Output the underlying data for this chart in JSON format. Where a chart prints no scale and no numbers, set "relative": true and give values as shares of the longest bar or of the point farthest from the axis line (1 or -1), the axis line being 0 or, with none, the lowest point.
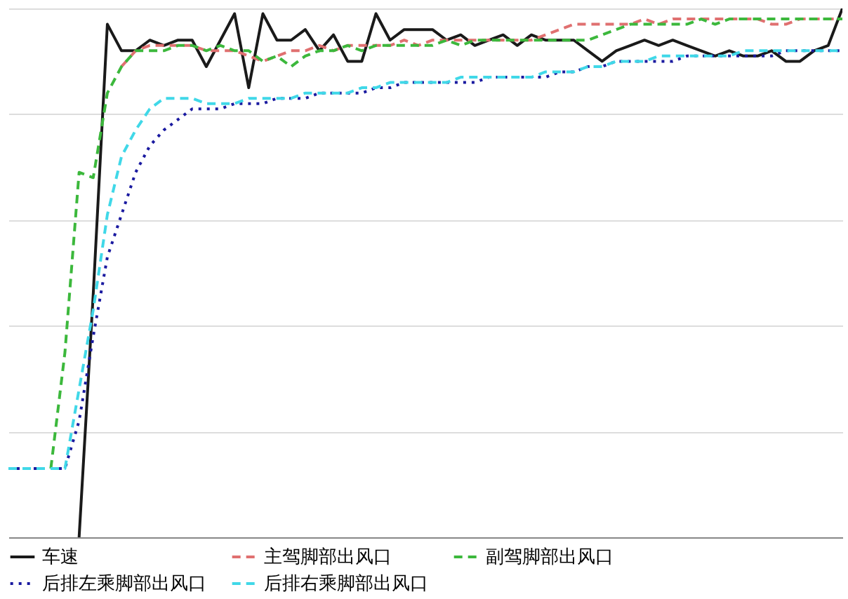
{
  "chart_data": {
    "type": "line",
    "relative": true,
    "grid": "y",
    "legend": "bottom",
    "categories": [
      null,
      null,
      null,
      null,
      null,
      null,
      null,
      null,
      null,
      null,
      null,
      null,
      null,
      null,
      null,
      null,
      null,
      null,
      null,
      null,
      null,
      null,
      null,
      null,
      null,
      null,
      null,
      null,
      null,
      null,
      null,
      null,
      null,
      null,
      null,
      null,
      null,
      null,
      null,
      null,
      null,
      null,
      null,
      null,
      null,
      null,
      null,
      null,
      null,
      null,
      null,
      null,
      null,
      null,
      null,
      null,
      null,
      null,
      null,
      null
    ],
    "series": [
      {
        "name": "车速",
        "color": "#1a1a1a",
        "line_style": "solid",
        "values": [
          null,
          null,
          null,
          null,
          null,
          0,
          0.46,
          0.97,
          0.92,
          0.92,
          0.94,
          0.93,
          0.94,
          0.94,
          0.89,
          0.94,
          0.99,
          0.85,
          0.99,
          0.94,
          0.94,
          0.96,
          0.92,
          0.95,
          0.9,
          0.9,
          0.99,
          0.94,
          0.96,
          0.96,
          0.96,
          0.94,
          0.95,
          0.93,
          0.94,
          0.95,
          0.93,
          0.95,
          0.94,
          0.94,
          0.94,
          0.92,
          0.9,
          0.92,
          0.93,
          0.94,
          0.93,
          0.94,
          0.93,
          0.92,
          0.91,
          0.92,
          0.91,
          0.91,
          0.92,
          0.9,
          0.9,
          0.92,
          0.93,
          1.0
        ]
      },
      {
        "name": "主驾脚部出风口",
        "color": "#e07070",
        "line_style": "dashed",
        "values": [
          null,
          null,
          null,
          null,
          null,
          null,
          null,
          null,
          0.89,
          0.92,
          0.93,
          0.93,
          0.93,
          0.93,
          0.92,
          0.92,
          0.92,
          0.91,
          0.9,
          0.91,
          0.92,
          0.92,
          0.93,
          0.92,
          0.93,
          0.93,
          0.93,
          0.93,
          0.94,
          0.93,
          0.94,
          0.94,
          0.94,
          0.94,
          0.94,
          0.94,
          0.94,
          0.94,
          0.95,
          0.96,
          0.97,
          0.97,
          0.97,
          0.97,
          0.97,
          0.98,
          0.97,
          0.98,
          0.98,
          0.98,
          0.98,
          0.98,
          0.98,
          0.98,
          0.97,
          0.97,
          0.98,
          0.98,
          0.98,
          0.98
        ]
      },
      {
        "name": "副驾脚部出风口",
        "color": "#3cb83c",
        "line_style": "dashed",
        "values": [
          null,
          null,
          null,
          0.13,
          0.35,
          0.69,
          0.68,
          0.84,
          0.89,
          0.92,
          0.92,
          0.92,
          0.93,
          0.93,
          0.92,
          0.93,
          0.92,
          0.92,
          0.9,
          0.91,
          0.89,
          0.91,
          0.92,
          0.92,
          0.93,
          0.92,
          0.93,
          0.93,
          0.93,
          0.93,
          0.93,
          0.94,
          0.93,
          0.94,
          0.94,
          0.94,
          0.94,
          0.94,
          0.94,
          0.94,
          0.94,
          0.94,
          0.95,
          0.96,
          0.97,
          0.97,
          0.97,
          0.97,
          0.97,
          0.98,
          0.97,
          0.98,
          0.98,
          0.98,
          0.98,
          0.98,
          0.98,
          0.98,
          0.98,
          0.98
        ]
      },
      {
        "name": "后排左乘脚部出风口",
        "color": "#1a1aa0",
        "line_style": "dotted",
        "values": [
          0.13,
          0.13,
          0.13,
          0.13,
          0.13,
          0.22,
          0.38,
          0.53,
          0.61,
          0.69,
          0.74,
          0.77,
          0.79,
          0.81,
          0.81,
          0.81,
          0.82,
          0.82,
          0.82,
          0.83,
          0.83,
          0.83,
          0.84,
          0.84,
          0.84,
          0.84,
          0.85,
          0.85,
          0.86,
          0.86,
          0.86,
          0.86,
          0.86,
          0.86,
          0.87,
          0.87,
          0.87,
          0.87,
          0.87,
          0.88,
          0.88,
          0.89,
          0.89,
          0.9,
          0.9,
          0.9,
          0.9,
          0.9,
          0.91,
          0.91,
          0.91,
          0.91,
          0.91,
          0.91,
          0.91,
          0.92,
          0.92,
          0.92,
          0.92,
          0.92
        ]
      },
      {
        "name": "后排右乘脚部出风口",
        "color": "#40d8e8",
        "line_style": "dashed",
        "values": [
          0.13,
          0.13,
          0.13,
          0.13,
          0.13,
          0.28,
          0.43,
          0.61,
          0.72,
          0.77,
          0.81,
          0.83,
          0.83,
          0.83,
          0.82,
          0.82,
          0.82,
          0.83,
          0.83,
          0.83,
          0.83,
          0.84,
          0.84,
          0.84,
          0.84,
          0.85,
          0.85,
          0.86,
          0.86,
          0.86,
          0.86,
          0.86,
          0.87,
          0.87,
          0.87,
          0.87,
          0.87,
          0.87,
          0.88,
          0.88,
          0.88,
          0.89,
          0.89,
          0.9,
          0.9,
          0.9,
          0.91,
          0.91,
          0.91,
          0.91,
          0.91,
          0.91,
          0.92,
          0.92,
          0.92,
          0.92,
          0.92,
          0.92,
          0.92,
          0.92
        ]
      }
    ]
  }
}
